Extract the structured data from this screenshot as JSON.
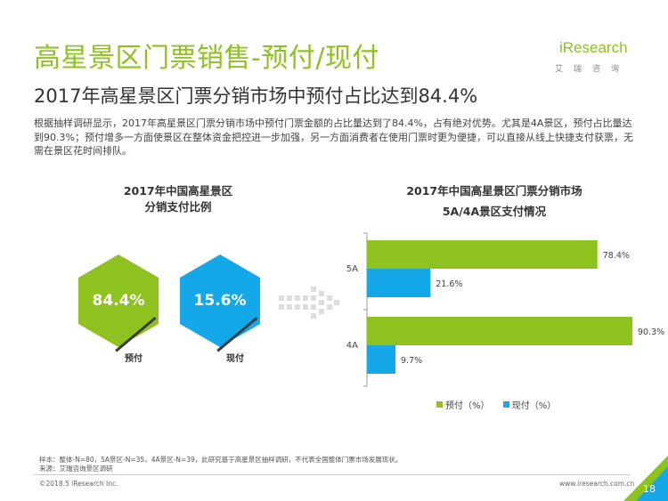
{
  "header": {
    "title": "高星景区门票销售-预付/现付",
    "subtitle": "2017年高星景区门票分销市场中预付占比达到84.4%",
    "logo_text": "iResearch",
    "logo_sub": "艾瑞咨询"
  },
  "intro": "根据抽样调研显示，2017年高星景区门票分销市场中预付门票金额的占比量达到了84.4%，占有绝对优势。尤其是4A景区，预付占比量达到90.3%；预付增多一方面使景区在整体资金把控进一步加强，另一方面消费者在使用门票时更为便捷，可以直接从线上快捷支付获票，无需在景区花时间排队。",
  "colors": {
    "green": "#8dc21f",
    "blue": "#14a8e8",
    "dark": "#3a3a3a"
  },
  "chart_data": [
    {
      "type": "pie",
      "title_line1": "2017年中国高星景区",
      "title_line2": "分销支付比例",
      "labels": [
        "预付",
        "现付"
      ],
      "values": [
        84.4,
        15.6
      ],
      "value_labels": [
        "84.4%",
        "15.6%"
      ]
    },
    {
      "type": "bar",
      "orientation": "horizontal",
      "title_line1": "2017年中国高星景区门票分销市场",
      "title_line2": "5A/4A景区支付情况",
      "categories": [
        "5A",
        "4A"
      ],
      "series": [
        {
          "name": "预付（%）",
          "values": [
            78.4,
            90.3
          ],
          "labels": [
            "78.4%",
            "90.3%"
          ]
        },
        {
          "name": "现付（%）",
          "values": [
            21.6,
            9.7
          ],
          "labels": [
            "21.6%",
            "9.7%"
          ]
        }
      ],
      "xlim": [
        0,
        100
      ],
      "legend": "bottom"
    }
  ],
  "footer": {
    "note_sample": "样本：整体-N=80，5A景区-N=35，4A景区-N=39，此研究基于高星景区抽样调研，不代表全国整体门票市场发展现状。",
    "note_source": "来源：艾瑞咨询景区调研",
    "copyright": "©2018.5 iResearch Inc.",
    "website": "www.iresearch.com.cn",
    "page": "18"
  }
}
